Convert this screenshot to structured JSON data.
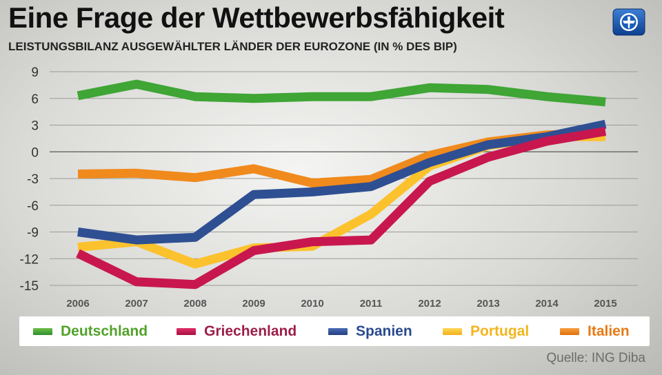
{
  "header": {
    "title": "Eine Frage der Wettbewerbsfähigkeit",
    "subtitle": "LEISTUNGSBILANZ AUSGEWÄHLTER LÄNDER DER EUROZONE (IN % DES BIP)"
  },
  "source": "Quelle: ING Diba",
  "colors": {
    "Deutschland": "#3fa535",
    "Griechenland": "#c8174f",
    "Spanien": "#2f4f93",
    "Portugal": "#fcc22d",
    "Italien": "#f08a1c",
    "Deutschland_label": "#52a22a",
    "Griechenland_label": "#9c1f48",
    "Spanien_label": "#2a4a90",
    "Portugal_label": "#f2b51c",
    "Italien_label": "#e77a14"
  },
  "chart_data": {
    "type": "line",
    "title": "Eine Frage der Wettbewerbsfähigkeit",
    "subtitle": "LEISTUNGSBILANZ AUSGEWÄHLTER LÄNDER DER EUROZONE (IN % DES BIP)",
    "xlabel": "",
    "ylabel": "",
    "x": [
      "2006",
      "2007",
      "2008",
      "2009",
      "2010",
      "2011",
      "2012",
      "2013",
      "2014",
      "2015"
    ],
    "ylim": [
      -15,
      9
    ],
    "yticks": [
      9,
      6,
      3,
      0,
      -3,
      -6,
      -9,
      -12,
      -15
    ],
    "ytick_labels": [
      "9",
      "6",
      "3",
      "0",
      "-3",
      "-6",
      "-9",
      "-12",
      "-15"
    ],
    "grid": true,
    "legend_position": "bottom",
    "series": [
      {
        "name": "Deutschland",
        "values": [
          6.3,
          7.6,
          6.2,
          6.0,
          6.2,
          6.2,
          7.2,
          7.0,
          6.2,
          5.6
        ]
      },
      {
        "name": "Griechenland",
        "values": [
          -11.4,
          -14.6,
          -14.9,
          -11.1,
          -10.1,
          -9.9,
          -3.3,
          -0.6,
          1.2,
          2.3
        ]
      },
      {
        "name": "Spanien",
        "values": [
          -9.0,
          -9.9,
          -9.6,
          -4.8,
          -4.5,
          -3.9,
          -1.2,
          0.8,
          1.7,
          3.1
        ]
      },
      {
        "name": "Portugal",
        "values": [
          -10.7,
          -10.1,
          -12.6,
          -10.8,
          -10.6,
          -7.0,
          -1.6,
          0.7,
          1.7,
          1.7
        ]
      },
      {
        "name": "Italien",
        "values": [
          -2.5,
          -2.4,
          -2.9,
          -1.9,
          -3.5,
          -3.1,
          -0.4,
          1.1,
          1.9,
          2.1
        ]
      }
    ]
  }
}
